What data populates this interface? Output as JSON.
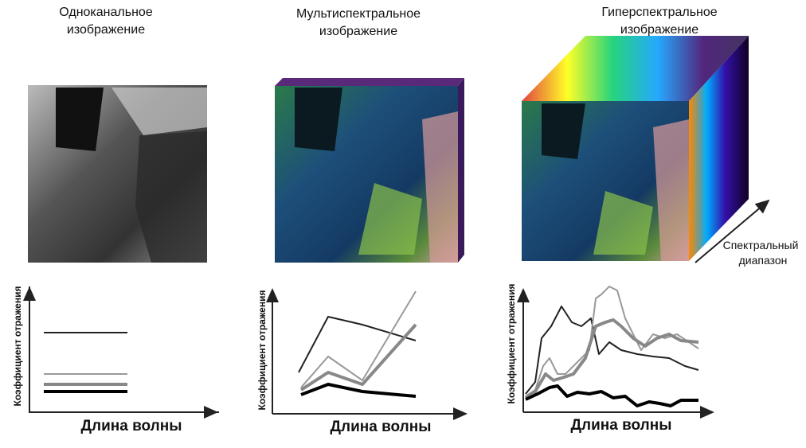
{
  "panels": [
    {
      "title": [
        "Одноканальное",
        "изображение"
      ],
      "y_label": "Коэффициент отражения",
      "x_label": "Длина волны"
    },
    {
      "title": [
        "Мультиспектральное",
        "изображение"
      ],
      "y_label": "Коэффициент отражения",
      "x_label": "Длина волны"
    },
    {
      "title": [
        "Гиперспектральное",
        "изображение"
      ],
      "y_label": "Коэффициент отражения",
      "x_label": "Длина волны",
      "annotation": [
        "Спектральный",
        "диапазон"
      ]
    }
  ]
}
